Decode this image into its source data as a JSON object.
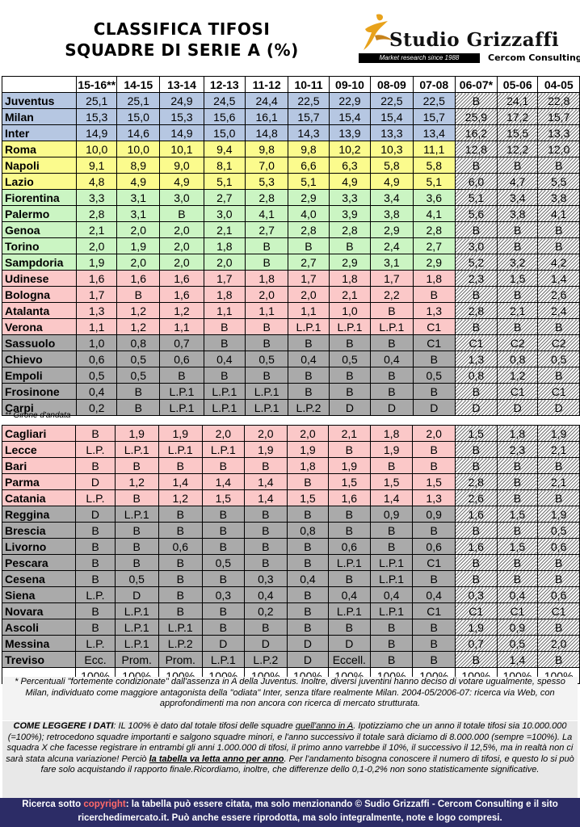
{
  "header": {
    "title_line1": "CLASSIFICA TIFOSI",
    "title_line2": "SQUADRE DI SERIE A (%)"
  },
  "logo": {
    "brand": "Studio Grizzaffi",
    "tagline": "Market research since 1988",
    "sub": "Cercom Consulting"
  },
  "seasons": [
    "15-16**",
    "14-15",
    "13-14",
    "12-13",
    "11-12",
    "10-11",
    "09-10",
    "08-09",
    "07-08",
    "06-07*",
    "05-06",
    "04-05"
  ],
  "table1": [
    {
      "team": "Juventus",
      "band": "blue",
      "values": [
        "25,1",
        "25,1",
        "24,9",
        "24,5",
        "24,4",
        "22,5",
        "22,9",
        "22,5",
        "22,5",
        "B",
        "24,1",
        "22,8"
      ]
    },
    {
      "team": "Milan",
      "band": "blue",
      "values": [
        "15,3",
        "15,0",
        "15,3",
        "15,6",
        "16,1",
        "15,7",
        "15,4",
        "15,4",
        "15,7",
        "25,9",
        "17,2",
        "15,7"
      ]
    },
    {
      "team": "Inter",
      "band": "blue",
      "values": [
        "14,9",
        "14,6",
        "14,9",
        "15,0",
        "14,8",
        "14,3",
        "13,9",
        "13,3",
        "13,4",
        "16,2",
        "15,5",
        "13,3"
      ]
    },
    {
      "team": "Roma",
      "band": "yel",
      "values": [
        "10,0",
        "10,0",
        "10,1",
        "9,4",
        "9,8",
        "9,8",
        "10,2",
        "10,3",
        "11,1",
        "12,8",
        "12,2",
        "12,0"
      ]
    },
    {
      "team": "Napoli",
      "band": "yel",
      "values": [
        "9,1",
        "8,9",
        "9,0",
        "8,1",
        "7,0",
        "6,6",
        "6,3",
        "5,8",
        "5,8",
        "B",
        "B",
        "B"
      ]
    },
    {
      "team": "Lazio",
      "band": "yel",
      "values": [
        "4,8",
        "4,9",
        "4,9",
        "5,1",
        "5,3",
        "5,1",
        "4,9",
        "4,9",
        "5,1",
        "6,0",
        "4,7",
        "5,5"
      ]
    },
    {
      "team": "Fiorentina",
      "band": "grn",
      "values": [
        "3,3",
        "3,1",
        "3,0",
        "2,7",
        "2,8",
        "2,9",
        "3,3",
        "3,4",
        "3,6",
        "5,1",
        "3,4",
        "3,8"
      ]
    },
    {
      "team": "Palermo",
      "band": "grn",
      "values": [
        "2,8",
        "3,1",
        "B",
        "3,0",
        "4,1",
        "4,0",
        "3,9",
        "3,8",
        "4,1",
        "5,6",
        "3,8",
        "4,1"
      ]
    },
    {
      "team": "Genoa",
      "band": "grn",
      "values": [
        "2,1",
        "2,0",
        "2,0",
        "2,1",
        "2,7",
        "2,8",
        "2,8",
        "2,9",
        "2,8",
        "B",
        "B",
        "B"
      ]
    },
    {
      "team": "Torino",
      "band": "grn",
      "values": [
        "2,0",
        "1,9",
        "2,0",
        "1,8",
        "B",
        "B",
        "B",
        "2,4",
        "2,7",
        "3,0",
        "B",
        "B"
      ]
    },
    {
      "team": "Sampdoria",
      "band": "grn",
      "values": [
        "1,9",
        "2,0",
        "2,0",
        "2,0",
        "B",
        "2,7",
        "2,9",
        "3,1",
        "2,9",
        "5,2",
        "3,2",
        "4,2"
      ]
    },
    {
      "team": "Udinese",
      "band": "pnk",
      "values": [
        "1,6",
        "1,6",
        "1,6",
        "1,7",
        "1,8",
        "1,7",
        "1,8",
        "1,7",
        "1,8",
        "2,3",
        "1,5",
        "1,4"
      ]
    },
    {
      "team": "Bologna",
      "band": "pnk",
      "values": [
        "1,7",
        "B",
        "1,6",
        "1,8",
        "2,0",
        "2,0",
        "2,1",
        "2,2",
        "B",
        "B",
        "B",
        "2,6"
      ]
    },
    {
      "team": "Atalanta",
      "band": "pnk",
      "values": [
        "1,3",
        "1,2",
        "1,2",
        "1,1",
        "1,1",
        "1,1",
        "1,0",
        "B",
        "1,3",
        "2,8",
        "2,1",
        "2,4"
      ]
    },
    {
      "team": "Verona",
      "band": "pnk",
      "values": [
        "1,1",
        "1,2",
        "1,1",
        "B",
        "B",
        "L.P.1",
        "L.P.1",
        "L.P.1",
        "C1",
        "B",
        "B",
        "B"
      ]
    },
    {
      "team": "Sassuolo",
      "band": "gry",
      "values": [
        "1,0",
        "0,8",
        "0,7",
        "B",
        "B",
        "B",
        "B",
        "B",
        "C1",
        "C1",
        "C2",
        "C2"
      ]
    },
    {
      "team": "Chievo",
      "band": "gry",
      "values": [
        "0,6",
        "0,5",
        "0,6",
        "0,4",
        "0,5",
        "0,4",
        "0,5",
        "0,4",
        "B",
        "1,3",
        "0,8",
        "0,5"
      ]
    },
    {
      "team": "Empoli",
      "band": "gry",
      "values": [
        "0,5",
        "0,5",
        "B",
        "B",
        "B",
        "B",
        "B",
        "B",
        "0,5",
        "0,8",
        "1,2",
        "B"
      ]
    },
    {
      "team": "Frosinone",
      "band": "gry",
      "values": [
        "0,4",
        "B",
        "L.P.1",
        "L.P.1",
        "L.P.1",
        "B",
        "B",
        "B",
        "B",
        "B",
        "C1",
        "C1"
      ]
    },
    {
      "team": "Carpi",
      "band": "gry",
      "values": [
        "0,2",
        "B",
        "L.P.1",
        "L.P.1",
        "L.P.1",
        "L.P.2",
        "D",
        "D",
        "D",
        "D",
        "D",
        "D"
      ]
    }
  ],
  "note_girone": "** Girone d'andata",
  "table2": [
    {
      "team": "Cagliari",
      "band": "pnk",
      "values": [
        "B",
        "1,9",
        "1,9",
        "2,0",
        "2,0",
        "2,0",
        "2,1",
        "1,8",
        "2,0",
        "1,5",
        "1,8",
        "1,9"
      ]
    },
    {
      "team": "Lecce",
      "band": "pnk",
      "values": [
        "L.P.",
        "L.P.1",
        "L.P.1",
        "L.P.1",
        "1,9",
        "1,9",
        "B",
        "1,9",
        "B",
        "B",
        "2,3",
        "2,1"
      ]
    },
    {
      "team": "Bari",
      "band": "pnk",
      "values": [
        "B",
        "B",
        "B",
        "B",
        "B",
        "1,8",
        "1,9",
        "B",
        "B",
        "B",
        "B",
        "B"
      ]
    },
    {
      "team": "Parma",
      "band": "pnk",
      "values": [
        "D",
        "1,2",
        "1,4",
        "1,4",
        "1,4",
        "B",
        "1,5",
        "1,5",
        "1,5",
        "2,8",
        "B",
        "2,1"
      ]
    },
    {
      "team": "Catania",
      "band": "pnk",
      "values": [
        "L.P.",
        "B",
        "1,2",
        "1,5",
        "1,4",
        "1,5",
        "1,6",
        "1,4",
        "1,3",
        "2,6",
        "B",
        "B"
      ]
    },
    {
      "team": "Reggina",
      "band": "gry",
      "values": [
        "D",
        "L.P.1",
        "B",
        "B",
        "B",
        "B",
        "B",
        "0,9",
        "0,9",
        "1,6",
        "1,5",
        "1,9"
      ]
    },
    {
      "team": "Brescia",
      "band": "gry",
      "values": [
        "B",
        "B",
        "B",
        "B",
        "B",
        "0,8",
        "B",
        "B",
        "B",
        "B",
        "B",
        "0,5"
      ]
    },
    {
      "team": "Livorno",
      "band": "gry",
      "values": [
        "B",
        "B",
        "0,6",
        "B",
        "B",
        "B",
        "0,6",
        "B",
        "0,6",
        "1,6",
        "1,5",
        "0,6"
      ]
    },
    {
      "team": "Pescara",
      "band": "gry",
      "values": [
        "B",
        "B",
        "B",
        "0,5",
        "B",
        "B",
        "L.P.1",
        "L.P.1",
        "C1",
        "B",
        "B",
        "B"
      ]
    },
    {
      "team": "Cesena",
      "band": "gry",
      "values": [
        "B",
        "0,5",
        "B",
        "B",
        "0,3",
        "0,4",
        "B",
        "L.P.1",
        "B",
        "B",
        "B",
        "B"
      ]
    },
    {
      "team": "Siena",
      "band": "gry",
      "values": [
        "L.P.",
        "D",
        "B",
        "0,3",
        "0,4",
        "B",
        "0,4",
        "0,4",
        "0,4",
        "0,3",
        "0,4",
        "0,6"
      ]
    },
    {
      "team": "Novara",
      "band": "gry",
      "values": [
        "B",
        "L.P.1",
        "B",
        "B",
        "0,2",
        "B",
        "L.P.1",
        "L.P.1",
        "C1",
        "C1",
        "C1",
        "C1"
      ]
    },
    {
      "team": "Ascoli",
      "band": "gry",
      "values": [
        "B",
        "L.P.1",
        "L.P.1",
        "B",
        "B",
        "B",
        "B",
        "B",
        "B",
        "1,9",
        "0,9",
        "B"
      ]
    },
    {
      "team": "Messina",
      "band": "gry",
      "values": [
        "L.P.",
        "L.P.1",
        "L.P.2",
        "D",
        "D",
        "D",
        "D",
        "B",
        "B",
        "0,7",
        "0,5",
        "2,0"
      ]
    },
    {
      "team": "Treviso",
      "band": "gry",
      "values": [
        "Ecc.",
        "Prom.",
        "Prom.",
        "L.P.1",
        "L.P.2",
        "D",
        "Eccell.",
        "B",
        "B",
        "B",
        "1,4",
        "B"
      ]
    }
  ],
  "totals": [
    "100%",
    "100%",
    "100%",
    "100%",
    "100%",
    "100%",
    "100%",
    "100%",
    "100%",
    "100%",
    "100%",
    "100%"
  ],
  "footnote_star": "* Percentuali \"fortemente condizionate\" dall'assenza in A della Juventus. Inoltre, diversi juventini hanno deciso di votare ugualmente, spesso Milan, individuato come maggiore antagonista della \"odiata\" Inter, senza tifare realmente Milan. 2004-05/2006-07: ricerca via Web, con approfondimenti ma non ancora con ricerca di mercato strutturata.",
  "how_to": {
    "label": "COME LEGGERE I DATI",
    "p1": ": IL 100% è dato dal totale tifosi delle squadre ",
    "p1_u": "quell'anno in A",
    "p2": ". Ipotizziamo che un anno il totale tifosi sia 10.000.000 (=100%); retrocedono squadre importanti e salgono squadre minori, e l'anno successivo il totale sarà diciamo di 8.000.000 (sempre =100%). La squadra X che facesse registrare in entrambi gli anni 1.000.000 di tifosi, il primo anno varrebbe il 10%, il successivo il 12,5%, ma in realtà non ci sarà stata alcuna variazione! Perciò ",
    "p2_b": "la tabella va letta anno per anno",
    "p3": ". Per l'andamento bisogna conoscere il numero di tifosi, e questo lo si può fare solo acquistando il rapporto finale.Ricordiamo, inoltre, che differenze dello 0,1-0,2% non sono statisticamente significative."
  },
  "copyright": {
    "pre": "Ricerca sotto ",
    "word": "copyright",
    "post": ": la tabella può essere citata, ma solo menzionando © Sudio Grizzaffi - Cercom Consulting e il sito",
    "line2": "ricerchedimercato.it. Può anche essere riprodotta, ma solo integralmente, note e logo compresi."
  },
  "colors": {
    "blue": "#b6c7e2",
    "yellow": "#fbfb8d",
    "green": "#cbf5c3",
    "pink": "#fbc8c8",
    "gray": "#aaaaaa",
    "footer_bg": "#2c2c66",
    "copyright_red": "#ff6a6a",
    "logo_gold": "#e8a21b"
  }
}
